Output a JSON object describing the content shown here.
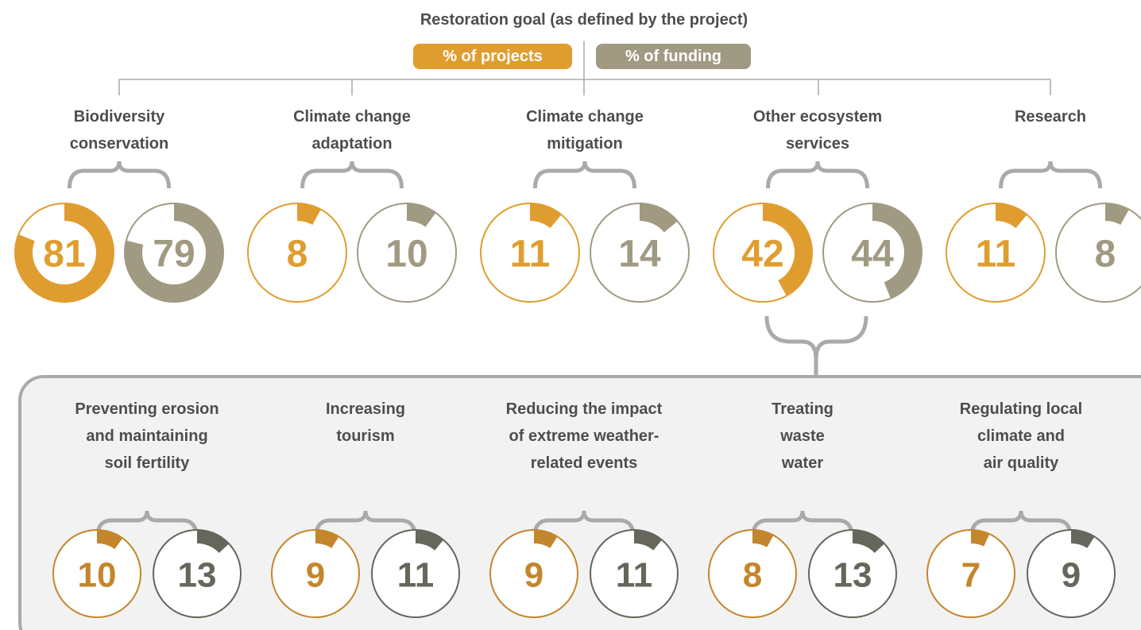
{
  "chart_data": [
    {
      "type": "donut",
      "title": "Restoration goal (as defined by the project)",
      "categories": [
        "Biodiversity\nconservation",
        "Climate change\nadaptation",
        "Climate change\nmitigation",
        "Other ecosystem\nservices",
        "Research"
      ],
      "series": [
        {
          "name": "% of projects",
          "color": "#e09d2f",
          "values": [
            81,
            8,
            11,
            42,
            11
          ]
        },
        {
          "name": "% of funding",
          "color": "#a19a83",
          "values": [
            79,
            10,
            14,
            44,
            8
          ]
        }
      ]
    },
    {
      "type": "donut",
      "categories": [
        "Preventing erosion\nand maintaining\nsoil fertility",
        "Increasing\ntourism",
        "Reducing the impact\nof extreme weather-\nrelated events",
        "Treating\nwaste\nwater",
        "Regulating local\nclimate and\nair quality"
      ],
      "series": [
        {
          "color": "#c4862c",
          "values": [
            10,
            9,
            9,
            8,
            7
          ]
        },
        {
          "color": "#66665c",
          "values": [
            13,
            11,
            11,
            13,
            9
          ]
        }
      ]
    }
  ]
}
